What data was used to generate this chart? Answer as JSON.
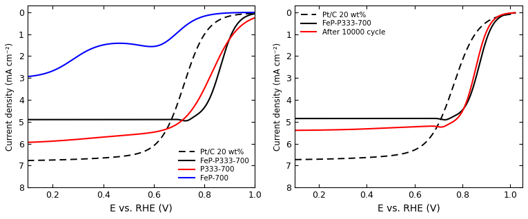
{
  "left": {
    "xlabel": "E vs. RHE (V)",
    "ylabel": "Current density (mA cm⁻²)",
    "xlim": [
      0.1,
      1.0
    ],
    "ylim": [
      8.0,
      -0.3
    ],
    "xticks": [
      0.2,
      0.4,
      0.6,
      0.8,
      1.0
    ],
    "yticks": [
      0,
      1,
      2,
      3,
      4,
      5,
      6,
      7,
      8
    ],
    "legend_labels": [
      "Pt/C 20 wt%",
      "FeP-P333-700",
      "P333-700",
      "FeP-700"
    ],
    "legend_loc": "lower right"
  },
  "right": {
    "xlabel": "E vs. RHE (V)",
    "ylabel": "Current density (mA cm⁻²)",
    "xlim": [
      0.1,
      1.05
    ],
    "ylim": [
      8.0,
      -0.3
    ],
    "xticks": [
      0.2,
      0.4,
      0.6,
      0.8,
      1.0
    ],
    "yticks": [
      0,
      1,
      2,
      3,
      4,
      5,
      6,
      7,
      8
    ],
    "legend_labels": [
      "Pt/C 20 wt%",
      "FeP-P333-700",
      "After 10000 cycle"
    ],
    "legend_loc": "upper left"
  },
  "figure_bg": "white"
}
